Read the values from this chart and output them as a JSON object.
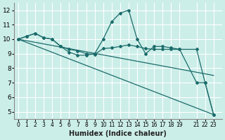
{
  "xlabel": "Humidex (Indice chaleur)",
  "ylabel": "",
  "bg_color": "#cceee8",
  "grid_color": "#ffffff",
  "line_color": "#1a6b6b",
  "xlim": [
    -0.5,
    24
  ],
  "ylim": [
    4.5,
    12.5
  ],
  "xtick_positions": [
    0,
    1,
    2,
    3,
    4,
    5,
    6,
    7,
    8,
    9,
    10,
    11,
    12,
    13,
    14,
    15,
    16,
    17,
    18,
    19,
    21,
    22,
    23
  ],
  "xtick_labels": [
    "0",
    "1",
    "2",
    "3",
    "4",
    "5",
    "6",
    "7",
    "8",
    "9",
    "10",
    "11",
    "12",
    "13",
    "14",
    "15",
    "16",
    "17",
    "18",
    "19",
    "21",
    "22",
    "23"
  ],
  "yticks": [
    5,
    6,
    7,
    8,
    9,
    10,
    11,
    12
  ],
  "series": [
    {
      "x": [
        0,
        1,
        2,
        3,
        4,
        5,
        6,
        7,
        8,
        9,
        10,
        11,
        12,
        13,
        14,
        15,
        16,
        17,
        18,
        19,
        21,
        22,
        23
      ],
      "y": [
        10.0,
        10.2,
        10.4,
        10.1,
        10.0,
        9.5,
        9.1,
        8.9,
        8.9,
        9.0,
        10.0,
        11.2,
        11.8,
        12.0,
        10.0,
        9.0,
        9.5,
        9.5,
        9.4,
        9.3,
        7.0,
        7.0,
        4.8
      ],
      "marker": true
    },
    {
      "x": [
        0,
        1,
        2,
        3,
        4,
        5,
        6,
        7,
        8,
        9,
        10,
        11,
        12,
        13,
        14,
        15,
        16,
        17,
        18,
        19,
        21,
        22,
        23
      ],
      "y": [
        10.0,
        10.2,
        10.4,
        10.1,
        10.0,
        9.5,
        9.3,
        9.2,
        9.0,
        8.95,
        9.35,
        9.4,
        9.5,
        9.6,
        9.5,
        9.35,
        9.3,
        9.3,
        9.3,
        9.3,
        9.3,
        7.0,
        4.8
      ],
      "marker": true
    },
    {
      "x": [
        0,
        23
      ],
      "y": [
        10.0,
        4.8
      ],
      "marker": false
    },
    {
      "x": [
        0,
        23
      ],
      "y": [
        10.0,
        7.5
      ],
      "marker": false
    }
  ]
}
